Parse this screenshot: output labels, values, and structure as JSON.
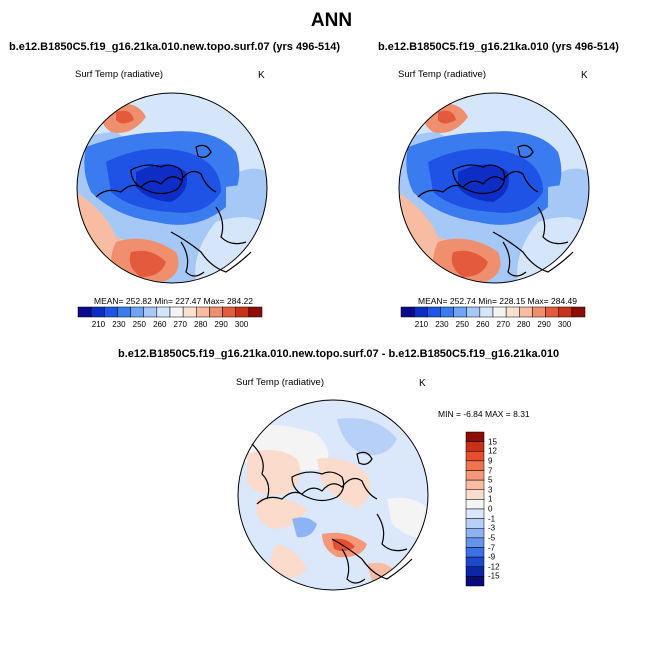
{
  "page_title": "ANN",
  "panels": [
    {
      "title": "b.e12.B1850C5.f19_g16.21ka.010.new.topo.surf.07 (yrs 496-514)",
      "variable": "Surf Temp (radiative)",
      "unit": "K",
      "stats": {
        "mean": "252.82",
        "min": "227.47",
        "max": "284.22"
      },
      "stats_text": "MEAN= 252.82   Min= 227.47   Max= 284.22"
    },
    {
      "title": "b.e12.B1850C5.f19_g16.21ka.010 (yrs 496-514)",
      "variable": "Surf Temp (radiative)",
      "unit": "K",
      "stats": {
        "mean": "252.74",
        "min": "228.15",
        "max": "284.49"
      },
      "stats_text": "MEAN= 252.74   Min= 228.15   Max= 284.49"
    },
    {
      "title": "b.e12.B1850C5.f19_g16.21ka.010.new.topo.surf.07 - b.e12.B1850C5.f19_g16.21ka.010",
      "variable": "Surf Temp (radiative)",
      "unit": "K",
      "stats": {
        "min": "-6.84",
        "max": "8.31"
      },
      "stats_text": "MIN =  -6.84 MAX =   8.31"
    }
  ],
  "colorbar_abs": {
    "tick_labels": [
      "210",
      "230",
      "250",
      "260",
      "270",
      "280",
      "290",
      "300"
    ],
    "colors": [
      "#0a0a8c",
      "#0d2dc4",
      "#1f53e6",
      "#3b7bf0",
      "#6ea3f5",
      "#a6c8f7",
      "#d6e6fa",
      "#f4f4f4",
      "#fbe0d2",
      "#f8bca2",
      "#f08f6e",
      "#e45a3c",
      "#c9301a",
      "#8c0c06"
    ]
  },
  "colorbar_diff": {
    "tick_labels": [
      "15",
      "12",
      "9",
      "7",
      "5",
      "3",
      "1",
      "0",
      "-1",
      "-3",
      "-5",
      "-7",
      "-9",
      "-12",
      "-15"
    ],
    "colors": [
      "#8c0c06",
      "#c9301a",
      "#e4502e",
      "#f07450",
      "#f5987a",
      "#f8bca2",
      "#fbdccc",
      "#f4f4f4",
      "#dbe8fb",
      "#b6d0f7",
      "#8cb3f3",
      "#6594ef",
      "#3c70e6",
      "#1e48cc",
      "#0d26a4",
      "#0a0a7a"
    ]
  },
  "maps": {
    "colors": {
      "deep_blue": "#1f53e6",
      "mid_blue": "#3b7bf0",
      "light_blue": "#a6c8f7",
      "pale": "#f4f4f4",
      "salmon": "#f08f6e",
      "light_salmon": "#f8bca2"
    }
  }
}
